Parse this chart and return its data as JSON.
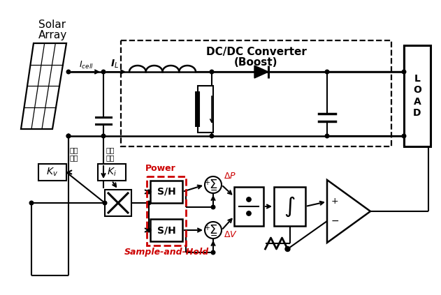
{
  "bg_color": "#ffffff",
  "black": "#000000",
  "red": "#cc0000",
  "solar_label_1": "Solar",
  "solar_label_2": "Array",
  "icell_label": "I$_{cell}$",
  "il_label": "I$_{L}$",
  "dc_dc_line1": "DC/DC Converter",
  "dc_dc_line2": "(Boost)",
  "load_label": "L\nO\nA\nD",
  "voltage_detect": "전압\n검출",
  "current_detect": "전류\n검출",
  "kv_label": "K$_{v}$",
  "ki_label": "K$_{i}$",
  "power_label": "Power",
  "sh_label": "S/H",
  "delta_p_label": "$\\Delta P$",
  "delta_v_label": "$\\Delta V$",
  "sample_hold_label": "Sample-and-Hold",
  "int_symbol": "$\\int$",
  "sum_symbol": "$\\Sigma$",
  "figw": 6.31,
  "figh": 4.23,
  "dpi": 100
}
